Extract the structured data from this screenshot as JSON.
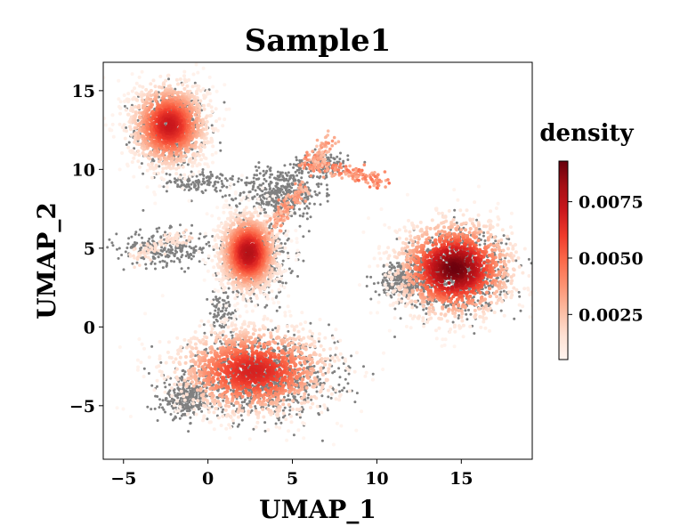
{
  "chart_data": {
    "type": "scatter",
    "title": "Sample1",
    "xlabel": "UMAP_1",
    "ylabel": "UMAP_2",
    "xlim": [
      -6.2,
      19.2
    ],
    "ylim": [
      -8.4,
      16.8
    ],
    "xticks": [
      {
        "value": -5,
        "label": "−5"
      },
      {
        "value": 0,
        "label": "0"
      },
      {
        "value": 5,
        "label": "5"
      },
      {
        "value": 10,
        "label": "10"
      },
      {
        "value": 15,
        "label": "15"
      }
    ],
    "yticks": [
      {
        "value": -5,
        "label": "−5"
      },
      {
        "value": 0,
        "label": "0"
      },
      {
        "value": 5,
        "label": "5"
      },
      {
        "value": 10,
        "label": "10"
      },
      {
        "value": 15,
        "label": "15"
      }
    ],
    "grid": false,
    "point_colors": {
      "background": "#808080",
      "density_low": "#fff0eb",
      "density_high": "#67000d"
    },
    "density_clusters": [
      {
        "name": "top-left",
        "center": [
          -2.3,
          12.8
        ],
        "spread": [
          1.2,
          1.4
        ],
        "peak_density": 0.0072
      },
      {
        "name": "center",
        "center": [
          2.4,
          4.7
        ],
        "spread": [
          0.9,
          1.3
        ],
        "peak_density": 0.0078
      },
      {
        "name": "bottom",
        "center": [
          2.7,
          -2.8
        ],
        "spread": [
          2.5,
          1.5
        ],
        "peak_density": 0.0068
      },
      {
        "name": "right",
        "center": [
          14.6,
          3.7
        ],
        "spread": [
          1.8,
          1.6
        ],
        "peak_density": 0.0092
      }
    ],
    "colorbar": {
      "title": "density",
      "min": 0.0005,
      "max": 0.0093,
      "ticks": [
        {
          "value": 0.0025,
          "label": "0.0025"
        },
        {
          "value": 0.005,
          "label": "0.0050"
        },
        {
          "value": 0.0075,
          "label": "0.0075"
        }
      ],
      "colormap": "Reds",
      "placement": "right"
    }
  }
}
